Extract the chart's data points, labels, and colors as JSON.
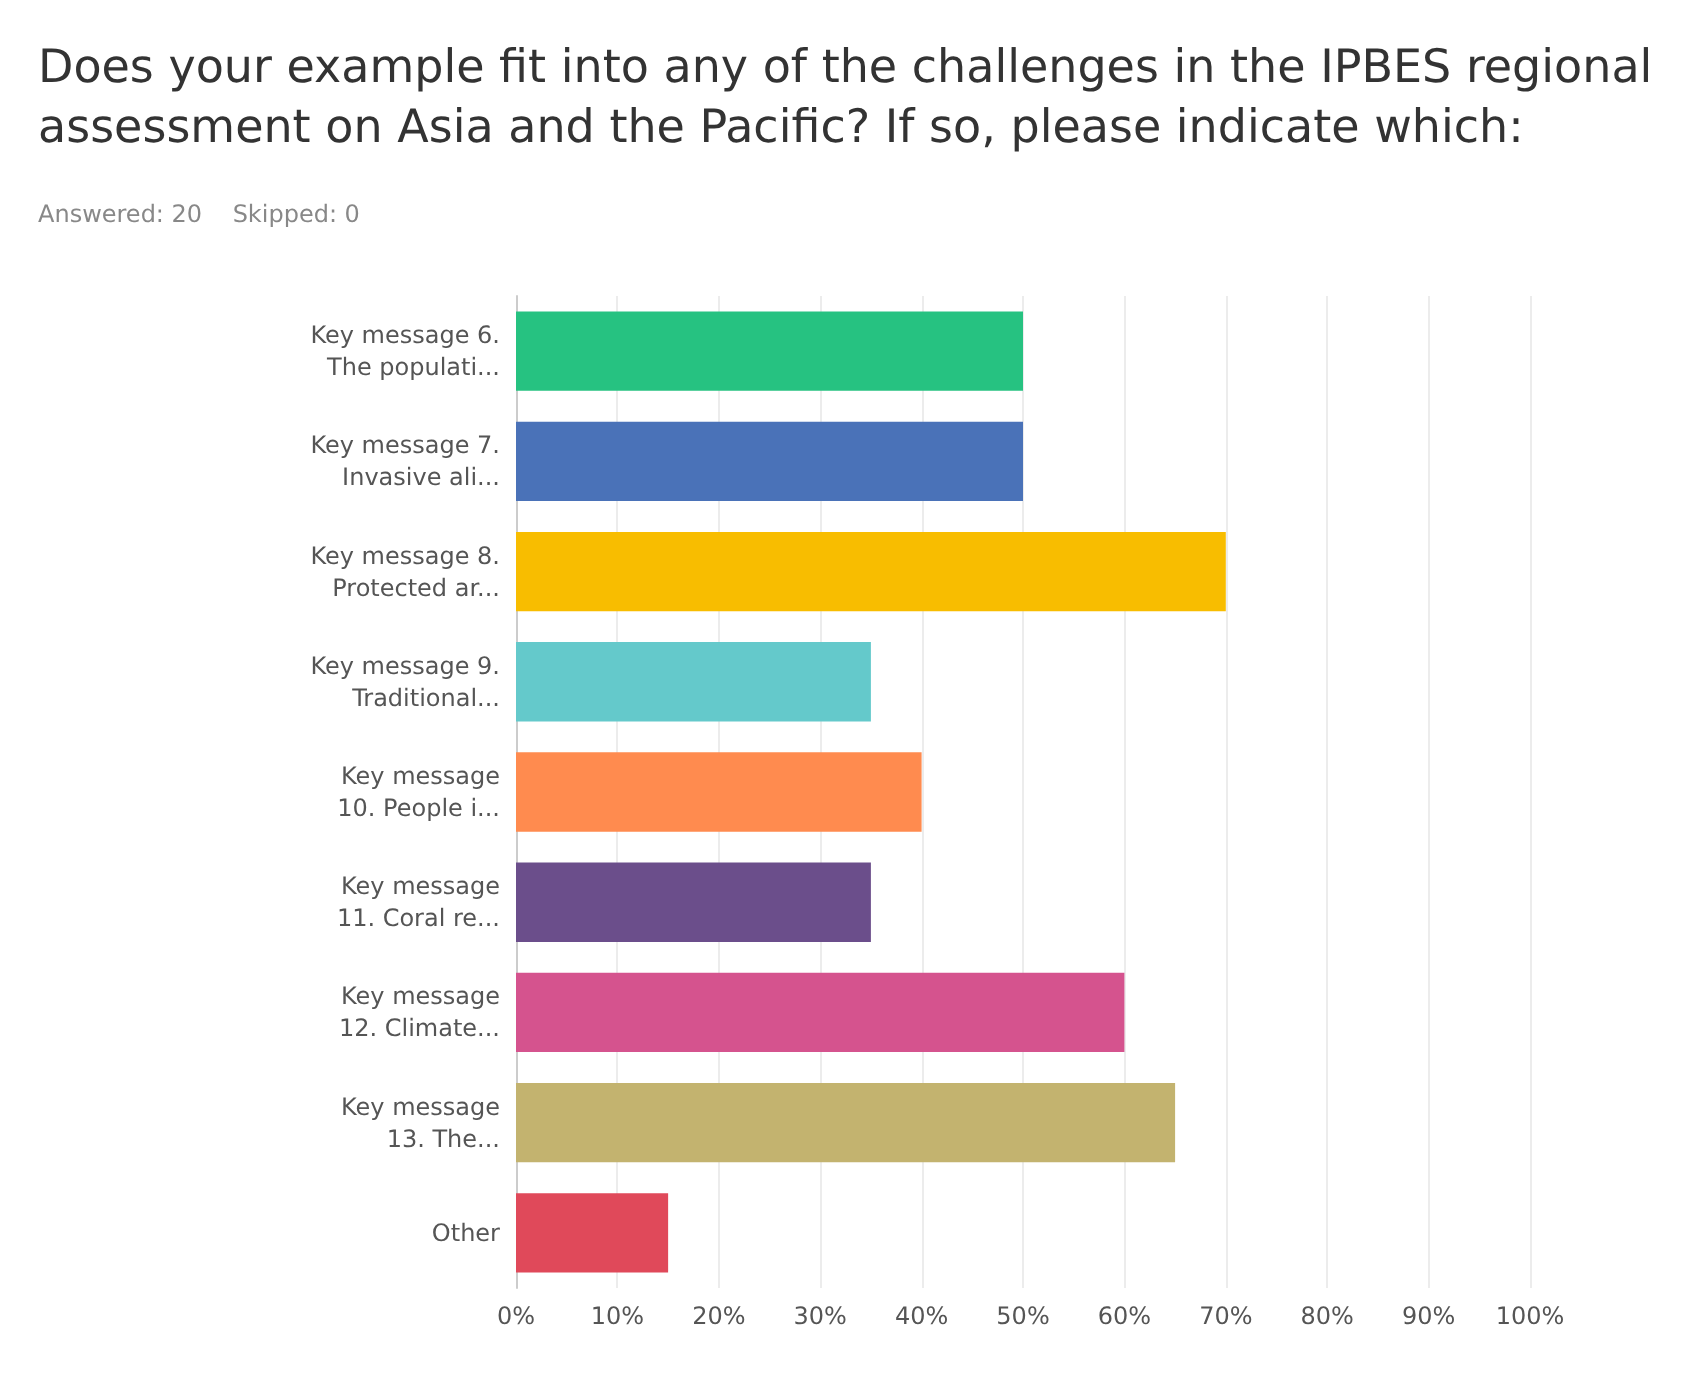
{
  "chart_data": {
    "type": "bar",
    "orientation": "horizontal",
    "title": "Does your example fit into any of the challenges in the IPBES regional assessment on Asia and the Pacific? If so, please indicate which:",
    "subtitle": "Answered: 20    Skipped: 0",
    "categories": [
      "Key message 6.\nThe populati...",
      "Key message 7.\nInvasive ali...",
      "Key message 8.\nProtected ar...",
      "Key message 9.\nTraditional...",
      "Key message\n10. People i...",
      "Key message\n11. Coral re...",
      "Key message\n12. Climate...",
      "Key message\n13. The...",
      "Other"
    ],
    "values": [
      50,
      50,
      70,
      35,
      40,
      35,
      60,
      65,
      15
    ],
    "colors": [
      "#26c281",
      "#4a72b8",
      "#f8bd00",
      "#64c9cb",
      "#ff8b4f",
      "#6b4e8b",
      "#d5538e",
      "#c3b36f",
      "#e0495a"
    ],
    "xlim": [
      0,
      100
    ],
    "xticks": [
      {
        "value": 0,
        "label": "0%"
      },
      {
        "value": 10,
        "label": "10%"
      },
      {
        "value": 20,
        "label": "20%"
      },
      {
        "value": 30,
        "label": "30%"
      },
      {
        "value": 40,
        "label": "40%"
      },
      {
        "value": 50,
        "label": "50%"
      },
      {
        "value": 60,
        "label": "60%"
      },
      {
        "value": 70,
        "label": "70%"
      },
      {
        "value": 80,
        "label": "80%"
      },
      {
        "value": 90,
        "label": "90%"
      },
      {
        "value": 100,
        "label": "100%"
      }
    ],
    "grid": "x"
  }
}
